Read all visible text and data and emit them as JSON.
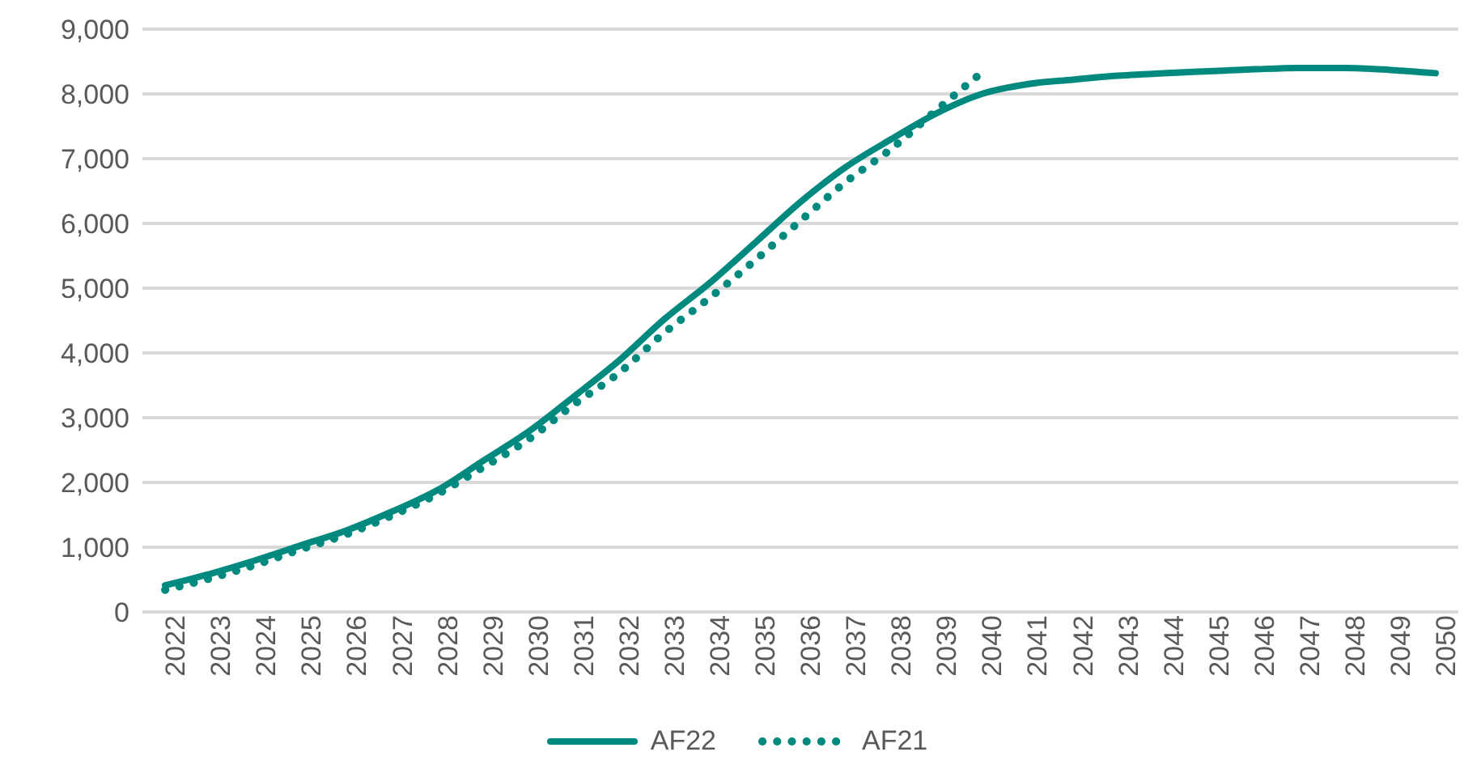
{
  "chart_data": {
    "type": "line",
    "x": [
      2022,
      2023,
      2024,
      2025,
      2026,
      2027,
      2028,
      2029,
      2030,
      2031,
      2032,
      2033,
      2034,
      2035,
      2036,
      2037,
      2038,
      2039,
      2040,
      2041,
      2042,
      2043,
      2044,
      2045,
      2046,
      2047,
      2048,
      2049,
      2050
    ],
    "xlim": [
      2021.5,
      2050.5
    ],
    "xticks": [
      2022,
      2023,
      2024,
      2025,
      2026,
      2027,
      2028,
      2029,
      2030,
      2031,
      2032,
      2033,
      2034,
      2035,
      2036,
      2037,
      2038,
      2039,
      2040,
      2041,
      2042,
      2043,
      2044,
      2045,
      2046,
      2047,
      2048,
      2049,
      2050
    ],
    "ylim": [
      0,
      9000
    ],
    "yticks": [
      {
        "value": 0,
        "label": "0"
      },
      {
        "value": 1000,
        "label": "1,000"
      },
      {
        "value": 2000,
        "label": "2,000"
      },
      {
        "value": 3000,
        "label": "3,000"
      },
      {
        "value": 4000,
        "label": "4,000"
      },
      {
        "value": 5000,
        "label": "5,000"
      },
      {
        "value": 6000,
        "label": "6,000"
      },
      {
        "value": 7000,
        "label": "7,000"
      },
      {
        "value": 8000,
        "label": "8,000"
      },
      {
        "value": 9000,
        "label": "9,000"
      }
    ],
    "grid": "y",
    "legend": "bottom",
    "marker": "none",
    "series": [
      {
        "name": "AF22",
        "color": "#00897f",
        "line_style": "solid",
        "values": [
          410,
          590,
          800,
          1030,
          1260,
          1550,
          1880,
          2330,
          2780,
          3320,
          3880,
          4520,
          5080,
          5700,
          6330,
          6870,
          7300,
          7700,
          8000,
          8150,
          8220,
          8280,
          8320,
          8350,
          8380,
          8400,
          8400,
          8370,
          8320
        ]
      },
      {
        "name": "AF21",
        "color": "#00897f",
        "line_style": "dotted",
        "values": [
          340,
          520,
          730,
          970,
          1200,
          1490,
          1820,
          2230,
          2660,
          3200,
          3690,
          4310,
          4850,
          5430,
          6040,
          6640,
          7150,
          7750,
          8330,
          null,
          null,
          null,
          null,
          null,
          null,
          null,
          null,
          null,
          null
        ]
      }
    ]
  }
}
